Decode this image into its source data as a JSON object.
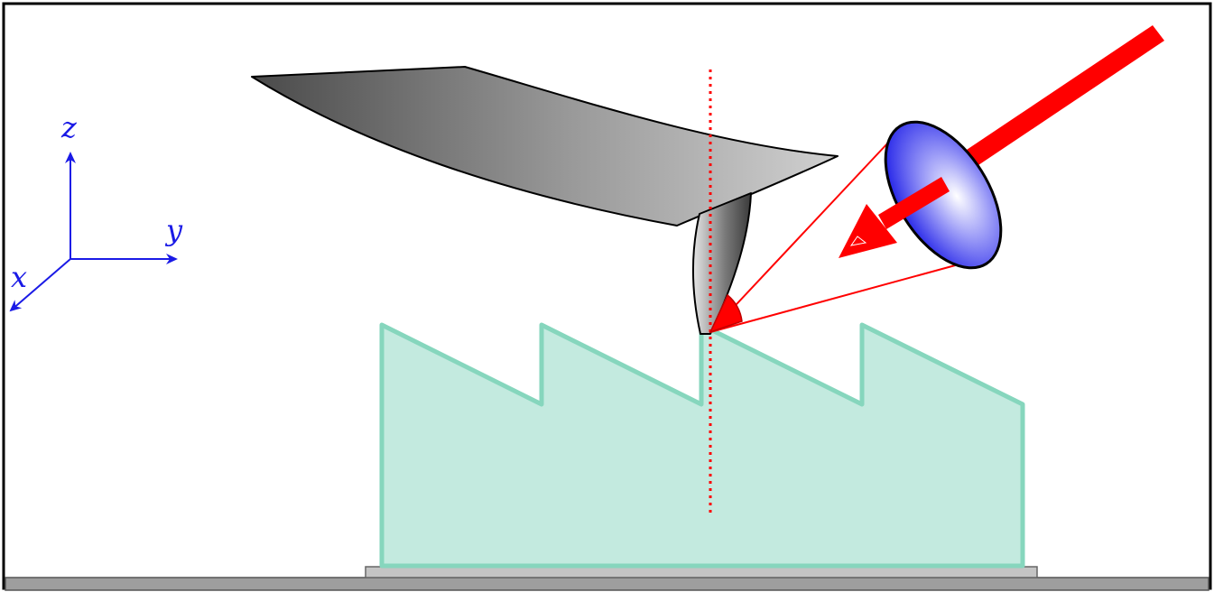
{
  "axes": {
    "x_label": "x",
    "y_label": "y",
    "z_label": "z"
  },
  "colors": {
    "axis": "#1a1ae6",
    "beam": "#ff0000",
    "optic_lens": "#3b3bf0",
    "sample_fill": "#c3eadf",
    "sample_stroke": "#86d6bd",
    "cantilever": "#8c8c8c",
    "stage": "#9e9e9e",
    "frame": "#000000"
  }
}
